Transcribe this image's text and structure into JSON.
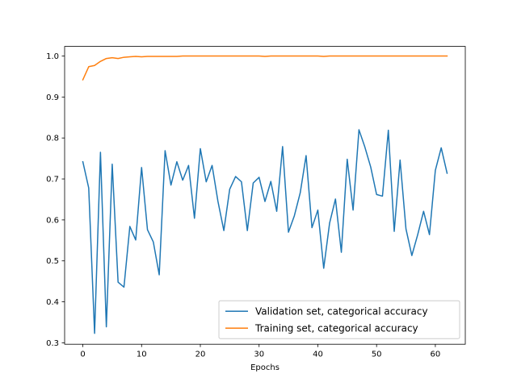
{
  "chart_data": {
    "type": "line",
    "title": "",
    "xlabel": "Epochs",
    "ylabel": "",
    "xlim": [
      -3.1,
      65.1
    ],
    "ylim": [
      0.2965,
      1.0235
    ],
    "x_ticks": [
      0,
      10,
      20,
      30,
      40,
      50,
      60
    ],
    "y_ticks": [
      0.3,
      0.4,
      0.5,
      0.6,
      0.7,
      0.8,
      0.9,
      1.0
    ],
    "x_tick_labels": [
      "0",
      "10",
      "20",
      "30",
      "40",
      "50",
      "60"
    ],
    "y_tick_labels": [
      "0.3",
      "0.4",
      "0.5",
      "0.6",
      "0.7",
      "0.8",
      "0.9",
      "1.0"
    ],
    "grid": false,
    "legend_position": "lower-right",
    "series": [
      {
        "name": "Validation set, categorical accuracy",
        "color": "#1f77b4",
        "x": [
          0,
          1,
          2,
          3,
          4,
          5,
          6,
          7,
          8,
          9,
          10,
          11,
          12,
          13,
          14,
          15,
          16,
          17,
          18,
          19,
          20,
          21,
          22,
          23,
          24,
          25,
          26,
          27,
          28,
          29,
          30,
          31,
          32,
          33,
          34,
          35,
          36,
          37,
          38,
          39,
          40,
          41,
          42,
          43,
          44,
          45,
          46,
          47,
          48,
          49,
          50,
          51,
          52,
          53,
          54,
          55,
          56,
          57,
          58,
          59,
          60,
          61,
          62
        ],
        "values": [
          0.742,
          0.678,
          0.323,
          0.765,
          0.339,
          0.736,
          0.448,
          0.436,
          0.584,
          0.551,
          0.728,
          0.576,
          0.546,
          0.466,
          0.769,
          0.685,
          0.742,
          0.697,
          0.733,
          0.604,
          0.774,
          0.693,
          0.733,
          0.645,
          0.574,
          0.675,
          0.706,
          0.693,
          0.574,
          0.69,
          0.704,
          0.645,
          0.694,
          0.621,
          0.779,
          0.57,
          0.61,
          0.666,
          0.757,
          0.581,
          0.624,
          0.482,
          0.592,
          0.651,
          0.521,
          0.748,
          0.624,
          0.82,
          0.778,
          0.729,
          0.662,
          0.658,
          0.819,
          0.572,
          0.746,
          0.578,
          0.513,
          0.564,
          0.621,
          0.564,
          0.721,
          0.776,
          0.714
        ]
      },
      {
        "name": "Training set, categorical accuracy",
        "color": "#ff7f0e",
        "x": [
          0,
          1,
          2,
          3,
          4,
          5,
          6,
          7,
          8,
          9,
          10,
          11,
          12,
          13,
          14,
          15,
          16,
          17,
          18,
          19,
          20,
          21,
          22,
          23,
          24,
          25,
          26,
          27,
          28,
          29,
          30,
          31,
          32,
          33,
          34,
          35,
          36,
          37,
          38,
          39,
          40,
          41,
          42,
          43,
          44,
          45,
          46,
          47,
          48,
          49,
          50,
          51,
          52,
          53,
          54,
          55,
          56,
          57,
          58,
          59,
          60,
          61,
          62
        ],
        "values": [
          0.942,
          0.974,
          0.977,
          0.987,
          0.994,
          0.996,
          0.994,
          0.997,
          0.998,
          0.999,
          0.998,
          0.999,
          0.999,
          0.999,
          0.999,
          0.999,
          0.999,
          1.0,
          1.0,
          1.0,
          1.0,
          1.0,
          1.0,
          1.0,
          1.0,
          1.0,
          1.0,
          1.0,
          1.0,
          1.0,
          1.0,
          0.999,
          1.0,
          1.0,
          1.0,
          1.0,
          1.0,
          1.0,
          1.0,
          1.0,
          1.0,
          0.999,
          1.0,
          1.0,
          1.0,
          1.0,
          1.0,
          1.0,
          1.0,
          1.0,
          1.0,
          1.0,
          1.0,
          1.0,
          1.0,
          1.0,
          1.0,
          1.0,
          1.0,
          1.0,
          1.0,
          1.0,
          1.0
        ]
      }
    ]
  }
}
